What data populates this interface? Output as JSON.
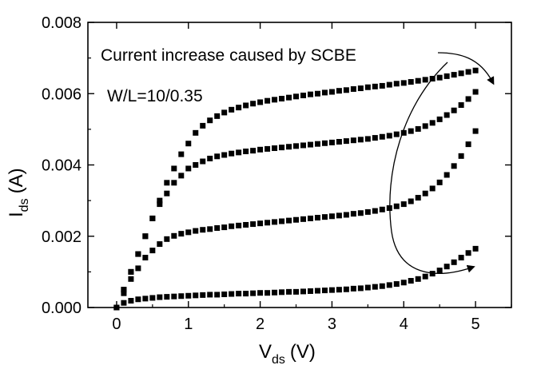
{
  "chart_data": {
    "type": "scatter",
    "xlabel": {
      "main": "V",
      "sub": "ds",
      "unit": "(V)"
    },
    "ylabel": {
      "main": "I",
      "sub": "ds",
      "unit": "(A)"
    },
    "xlim": [
      -0.4,
      5.5
    ],
    "ylim": [
      0,
      0.008
    ],
    "x_ticks": [
      0,
      1,
      2,
      3,
      4,
      5
    ],
    "y_ticks": [
      0.0,
      0.002,
      0.004,
      0.006,
      0.008
    ],
    "x_tick_labels": [
      "0",
      "1",
      "2",
      "3",
      "4",
      "5"
    ],
    "y_tick_labels": [
      "0.000",
      "0.002",
      "0.004",
      "0.006",
      "0.008"
    ],
    "marker": "square",
    "annotations": {
      "scbe": "Current increase caused  by SCBE",
      "geometry": "W/L=10/0.35"
    },
    "series": [
      {
        "x": [
          0,
          0.1,
          0.2,
          0.3,
          0.4,
          0.5,
          0.6,
          0.7,
          0.8,
          0.9,
          1.0,
          1.1,
          1.2,
          1.3,
          1.4,
          1.5,
          1.6,
          1.7,
          1.8,
          1.9,
          2.0,
          2.1,
          2.2,
          2.3,
          2.4,
          2.5,
          2.6,
          2.7,
          2.8,
          2.9,
          3.0,
          3.1,
          3.2,
          3.3,
          3.4,
          3.5,
          3.6,
          3.7,
          3.8,
          3.9,
          4.0,
          4.1,
          4.2,
          4.3,
          4.4,
          4.5,
          4.6,
          4.7,
          4.8,
          4.9,
          5.0
        ],
        "values": [
          0,
          0.00013,
          0.00019,
          0.00023,
          0.00025,
          0.00027,
          0.00029,
          0.0003,
          0.00031,
          0.00032,
          0.00033,
          0.00034,
          0.00035,
          0.00036,
          0.00036,
          0.00037,
          0.00038,
          0.00039,
          0.00039,
          0.0004,
          0.00041,
          0.00041,
          0.00042,
          0.00043,
          0.00044,
          0.00044,
          0.00045,
          0.00046,
          0.00047,
          0.00048,
          0.00049,
          0.0005,
          0.00051,
          0.00053,
          0.00054,
          0.00056,
          0.00058,
          0.0006,
          0.00063,
          0.00066,
          0.0007,
          0.00075,
          0.0008,
          0.00087,
          0.00095,
          0.00104,
          0.00115,
          0.00127,
          0.0014,
          0.00153,
          0.00165
        ]
      },
      {
        "x": [
          0,
          0.1,
          0.2,
          0.3,
          0.4,
          0.5,
          0.6,
          0.7,
          0.8,
          0.9,
          1.0,
          1.1,
          1.2,
          1.3,
          1.4,
          1.5,
          1.6,
          1.7,
          1.8,
          1.9,
          2.0,
          2.1,
          2.2,
          2.3,
          2.4,
          2.5,
          2.6,
          2.7,
          2.8,
          2.9,
          3.0,
          3.1,
          3.2,
          3.3,
          3.4,
          3.5,
          3.6,
          3.7,
          3.8,
          3.9,
          4.0,
          4.1,
          4.2,
          4.3,
          4.4,
          4.5,
          4.6,
          4.7,
          4.8,
          4.9,
          5.0
        ],
        "values": [
          0,
          0.0004,
          0.0008,
          0.0011,
          0.0014,
          0.0016,
          0.00178,
          0.00192,
          0.00201,
          0.00207,
          0.00211,
          0.00215,
          0.00218,
          0.0022,
          0.00223,
          0.00225,
          0.00228,
          0.0023,
          0.00232,
          0.00234,
          0.00236,
          0.00238,
          0.0024,
          0.00242,
          0.00244,
          0.00246,
          0.00248,
          0.0025,
          0.00252,
          0.00254,
          0.00256,
          0.00258,
          0.0026,
          0.00263,
          0.00265,
          0.00268,
          0.00271,
          0.00275,
          0.00279,
          0.00284,
          0.0029,
          0.00298,
          0.00308,
          0.0032,
          0.00334,
          0.00351,
          0.00372,
          0.00397,
          0.00425,
          0.00458,
          0.00495
        ]
      },
      {
        "x": [
          0,
          0.1,
          0.2,
          0.3,
          0.4,
          0.5,
          0.6,
          0.7,
          0.8,
          0.9,
          1.0,
          1.1,
          1.2,
          1.3,
          1.4,
          1.5,
          1.6,
          1.7,
          1.8,
          1.9,
          2.0,
          2.1,
          2.2,
          2.3,
          2.4,
          2.5,
          2.6,
          2.7,
          2.8,
          2.9,
          3.0,
          3.1,
          3.2,
          3.3,
          3.4,
          3.5,
          3.6,
          3.7,
          3.8,
          3.9,
          4.0,
          4.1,
          4.2,
          4.3,
          4.4,
          4.5,
          4.6,
          4.7,
          4.8,
          4.9,
          5.0
        ],
        "values": [
          0,
          0.0005,
          0.001,
          0.0015,
          0.002,
          0.0025,
          0.0029,
          0.0032,
          0.0035,
          0.0037,
          0.0039,
          0.004,
          0.0041,
          0.00418,
          0.00424,
          0.00428,
          0.00432,
          0.00435,
          0.00438,
          0.0044,
          0.00443,
          0.00445,
          0.00447,
          0.00449,
          0.00451,
          0.00453,
          0.00455,
          0.00457,
          0.00459,
          0.00461,
          0.00463,
          0.00465,
          0.00467,
          0.00469,
          0.00471,
          0.00473,
          0.00476,
          0.00479,
          0.00482,
          0.00486,
          0.0049,
          0.00495,
          0.00501,
          0.00509,
          0.00518,
          0.00528,
          0.0054,
          0.00553,
          0.00568,
          0.00585,
          0.00605
        ]
      },
      {
        "x": [
          0,
          0.1,
          0.2,
          0.3,
          0.4,
          0.5,
          0.6,
          0.7,
          0.8,
          0.9,
          1.0,
          1.1,
          1.2,
          1.3,
          1.4,
          1.5,
          1.6,
          1.7,
          1.8,
          1.9,
          2.0,
          2.1,
          2.2,
          2.3,
          2.4,
          2.5,
          2.6,
          2.7,
          2.8,
          2.9,
          3.0,
          3.1,
          3.2,
          3.3,
          3.4,
          3.5,
          3.6,
          3.7,
          3.8,
          3.9,
          4.0,
          4.1,
          4.2,
          4.3,
          4.4,
          4.5,
          4.6,
          4.7,
          4.8,
          4.9,
          5.0
        ],
        "values": [
          0,
          0.0005,
          0.001,
          0.0015,
          0.002,
          0.0025,
          0.003,
          0.0035,
          0.0039,
          0.0043,
          0.0046,
          0.0049,
          0.0051,
          0.00525,
          0.00537,
          0.00547,
          0.00555,
          0.00561,
          0.00567,
          0.00572,
          0.00576,
          0.0058,
          0.00583,
          0.00586,
          0.00589,
          0.00592,
          0.00595,
          0.00598,
          0.006,
          0.00603,
          0.00605,
          0.00608,
          0.0061,
          0.00613,
          0.00615,
          0.00618,
          0.0062,
          0.00622,
          0.00625,
          0.00628,
          0.0063,
          0.00633,
          0.00636,
          0.00639,
          0.00642,
          0.00645,
          0.00649,
          0.00653,
          0.00657,
          0.00661,
          0.00665
        ]
      }
    ]
  }
}
